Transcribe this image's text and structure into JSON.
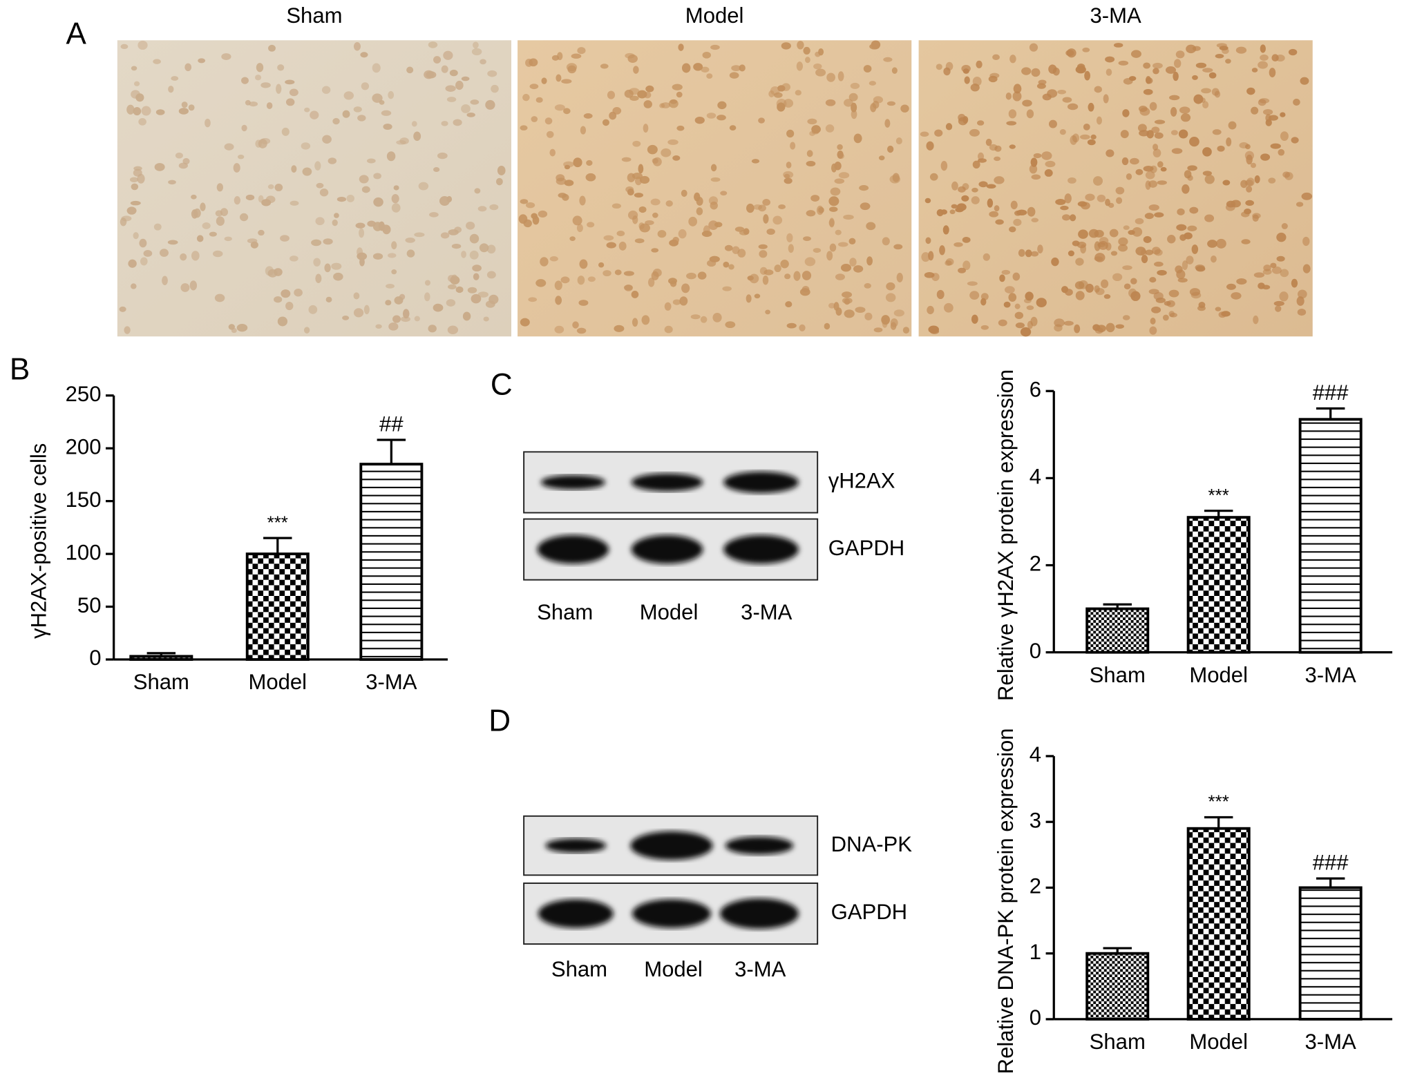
{
  "panel_labels": [
    "A",
    "B",
    "C",
    "D"
  ],
  "micrographs": {
    "labels": [
      "Sham",
      "Model",
      "3-MA"
    ]
  },
  "blots": [
    {
      "targets": [
        "γH2AX",
        "GAPDH"
      ],
      "lanes": [
        "Sham",
        "Model",
        "3-MA"
      ]
    },
    {
      "targets": [
        "DNA-PK",
        "GAPDH"
      ],
      "lanes": [
        "Sham",
        "Model",
        "3-MA"
      ]
    }
  ],
  "chart_data": [
    {
      "type": "bar",
      "ylabel": "γH2AX-positive cells",
      "categories": [
        "Sham",
        "Model",
        "3-MA"
      ],
      "values": [
        3,
        100,
        185
      ],
      "errors": [
        3,
        15,
        23
      ],
      "annotations": [
        null,
        "***",
        "##"
      ],
      "ylim": [
        0,
        250
      ],
      "yticks": [
        0,
        50,
        100,
        150,
        200,
        250
      ],
      "color": "#000000",
      "patterns": [
        "fine-check",
        "check",
        "hlines"
      ]
    },
    {
      "type": "bar",
      "ylabel": "Relative γH2AX protein expression",
      "categories": [
        "Sham",
        "Model",
        "3-MA"
      ],
      "values": [
        1.0,
        3.1,
        5.35
      ],
      "errors": [
        0.1,
        0.15,
        0.25
      ],
      "annotations": [
        null,
        "***",
        "###"
      ],
      "ylim": [
        0,
        6
      ],
      "yticks": [
        0,
        2,
        4,
        6
      ],
      "color": "#000000",
      "patterns": [
        "fine-check",
        "check",
        "hlines"
      ]
    },
    {
      "type": "bar",
      "ylabel": "Relative DNA-PK protein expression",
      "categories": [
        "Sham",
        "Model",
        "3-MA"
      ],
      "values": [
        1.0,
        2.9,
        2.0
      ],
      "errors": [
        0.08,
        0.17,
        0.14
      ],
      "annotations": [
        null,
        "***",
        "###"
      ],
      "ylim": [
        0,
        4
      ],
      "yticks": [
        0,
        1,
        2,
        3,
        4
      ],
      "color": "#000000",
      "patterns": [
        "fine-check",
        "check",
        "hlines"
      ]
    }
  ]
}
